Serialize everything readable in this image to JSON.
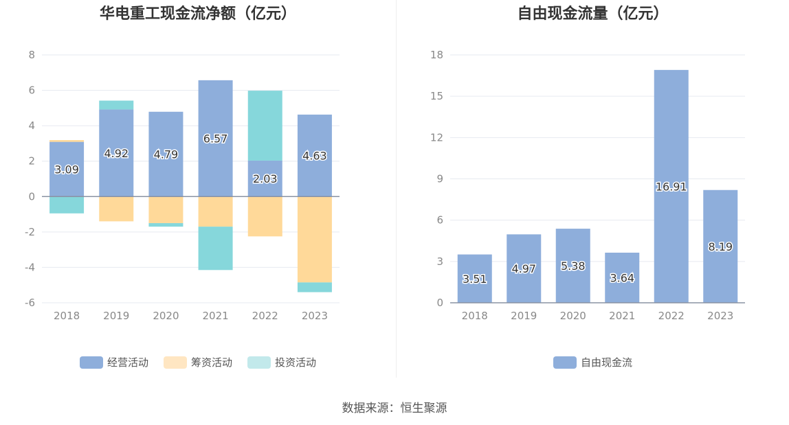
{
  "source_text": "数据来源：恒生聚源",
  "chart_data": [
    {
      "type": "bar",
      "stacked": true,
      "title": "华电重工现金流净额（亿元）",
      "categories": [
        "2018",
        "2019",
        "2020",
        "2021",
        "2022",
        "2023"
      ],
      "series": [
        {
          "name": "经营活动",
          "color": "#8eaedb",
          "values": [
            3.09,
            4.92,
            4.79,
            6.57,
            2.03,
            4.63
          ]
        },
        {
          "name": "筹资活动",
          "color": "#ffd999",
          "values": [
            0.1,
            -1.4,
            -1.5,
            -1.7,
            -2.25,
            -4.85
          ]
        },
        {
          "name": "投资活动",
          "color": "#86d7db",
          "values": [
            -0.95,
            0.5,
            -0.2,
            -2.45,
            3.95,
            -0.55
          ]
        }
      ],
      "data_labels": [
        "3.09",
        "4.92",
        "4.79",
        "6.57",
        "2.03",
        "4.63"
      ],
      "ylim": [
        -6,
        8
      ],
      "yticks": [
        -6,
        -4,
        -2,
        0,
        2,
        4,
        6,
        8
      ],
      "grid": true,
      "legend_position": "bottom",
      "legend_swatch_colors": [
        "#8eaedb",
        "#ffe6c2",
        "#c2e9eb"
      ]
    },
    {
      "type": "bar",
      "title": "自由现金流量（亿元）",
      "categories": [
        "2018",
        "2019",
        "2020",
        "2021",
        "2022",
        "2023"
      ],
      "series": [
        {
          "name": "自由现金流",
          "color": "#8eaedb",
          "values": [
            3.51,
            4.97,
            5.38,
            3.64,
            16.91,
            8.19
          ]
        }
      ],
      "data_labels": [
        "3.51",
        "4.97",
        "5.38",
        "3.64",
        "16.91",
        "8.19"
      ],
      "ylim": [
        0,
        18
      ],
      "yticks": [
        0,
        3,
        6,
        9,
        12,
        15,
        18
      ],
      "grid": true,
      "legend_position": "bottom"
    }
  ]
}
